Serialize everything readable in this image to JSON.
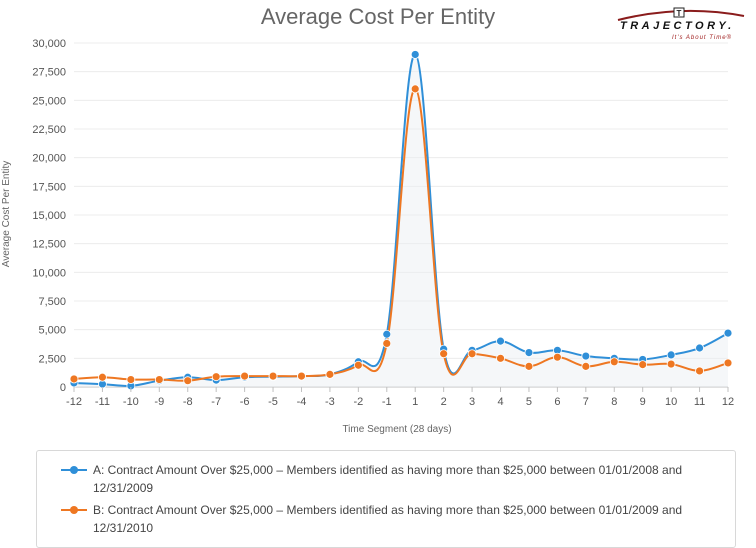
{
  "chart_data": {
    "type": "line",
    "title": "Average Cost Per Entity",
    "xlabel": "Time Segment (28 days)",
    "ylabel": "Average Cost Per Entity",
    "categories": [
      "-12",
      "-11",
      "-10",
      "-9",
      "-8",
      "-7",
      "-6",
      "-5",
      "-4",
      "-3",
      "-2",
      "-1",
      "1",
      "2",
      "3",
      "4",
      "5",
      "6",
      "7",
      "8",
      "9",
      "10",
      "11",
      "12"
    ],
    "ylim": [
      0,
      30000
    ],
    "yticks": [
      0,
      2500,
      5000,
      7500,
      10000,
      12500,
      15000,
      17500,
      20000,
      22500,
      25000,
      27500,
      30000
    ],
    "ytick_labels": [
      "0",
      "2,500",
      "5,000",
      "7,500",
      "10,000",
      "12,500",
      "15,000",
      "17,500",
      "20,000",
      "22,500",
      "25,000",
      "27,500",
      "30,000"
    ],
    "series": [
      {
        "name": "A",
        "color": "#2f8fd8",
        "values": [
          350,
          250,
          100,
          550,
          850,
          600,
          850,
          900,
          950,
          1100,
          2200,
          4600,
          29000,
          3300,
          3200,
          4000,
          3000,
          3200,
          2700,
          2500,
          2400,
          2800,
          3400,
          4700
        ]
      },
      {
        "name": "B",
        "color": "#ee7722",
        "values": [
          700,
          850,
          650,
          650,
          550,
          900,
          950,
          950,
          950,
          1100,
          1900,
          3800,
          26000,
          2900,
          2900,
          2500,
          1800,
          2600,
          1800,
          2200,
          1950,
          2000,
          1400,
          2100
        ]
      }
    ]
  },
  "legend": [
    {
      "text": "A: Contract Amount Over $25,000 – Members identified as having more than $25,000 between 01/01/2008 and 12/31/2009"
    },
    {
      "text": "B: Contract Amount Over $25,000 – Members identified as having more than $25,000 between 01/01/2009 and 12/31/2010"
    }
  ],
  "logo": {
    "name": "TRAJECTORY.",
    "tagline": "It's About Time®",
    "mark": "T"
  }
}
